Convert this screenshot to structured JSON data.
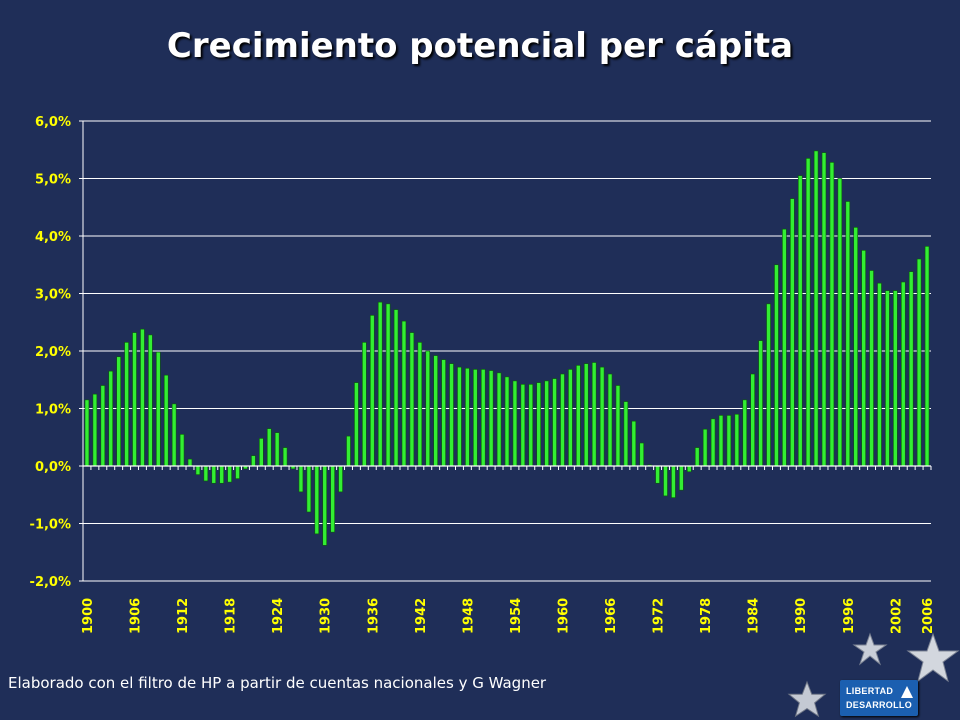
{
  "title": "Crecimiento potencial per cápita",
  "footnote": "Elaborado con el filtro de HP a partir de cuentas nacionales y G Wagner",
  "logo": {
    "line1": "LIBERTAD",
    "line2": "DESARROLLO"
  },
  "colors": {
    "background": "#1f2e58",
    "bar_fill": "#33ee33",
    "bar_stroke": "#0a5a0a",
    "tick_labels": "#ffff00",
    "gridlines": "#ffffff"
  },
  "chart_data": {
    "type": "bar",
    "title": "Crecimiento potencial per cápita",
    "xlabel": "",
    "ylabel": "",
    "ylim": [
      -2.0,
      6.0
    ],
    "ytick_labels": [
      "6,0%",
      "5,0%",
      "4,0%",
      "3,0%",
      "2,0%",
      "1,0%",
      "0,0%",
      "-1,0%",
      "-2,0%"
    ],
    "ytick_values": [
      6,
      5,
      4,
      3,
      2,
      1,
      0,
      -1,
      -2
    ],
    "xtick_labels": [
      "1900",
      "1906",
      "1912",
      "1918",
      "1924",
      "1930",
      "1936",
      "1942",
      "1948",
      "1954",
      "1960",
      "1966",
      "1972",
      "1978",
      "1984",
      "1990",
      "1996",
      "2002",
      "2006"
    ],
    "xtick_years": [
      1900,
      1906,
      1912,
      1918,
      1924,
      1930,
      1936,
      1942,
      1948,
      1954,
      1960,
      1966,
      1972,
      1978,
      1984,
      1990,
      1996,
      2002,
      2006
    ],
    "grid": true,
    "legend": "none",
    "unit": "%",
    "x_start": 1900,
    "x_end": 2006,
    "values": [
      1.15,
      1.25,
      1.4,
      1.65,
      1.9,
      2.15,
      2.32,
      2.38,
      2.28,
      1.98,
      1.58,
      1.08,
      0.55,
      0.12,
      -0.15,
      -0.26,
      -0.3,
      -0.3,
      -0.28,
      -0.22,
      -0.05,
      0.18,
      0.48,
      0.65,
      0.58,
      0.32,
      -0.05,
      -0.45,
      -0.8,
      -1.18,
      -1.38,
      -1.15,
      -0.45,
      0.52,
      1.45,
      2.15,
      2.62,
      2.85,
      2.82,
      2.72,
      2.52,
      2.32,
      2.15,
      2.0,
      1.92,
      1.85,
      1.78,
      1.72,
      1.7,
      1.68,
      1.68,
      1.66,
      1.62,
      1.55,
      1.48,
      1.42,
      1.42,
      1.45,
      1.48,
      1.52,
      1.6,
      1.68,
      1.75,
      1.78,
      1.8,
      1.72,
      1.6,
      1.4,
      1.12,
      0.78,
      0.4,
      0.02,
      -0.3,
      -0.52,
      -0.55,
      -0.42,
      -0.1,
      0.32,
      0.64,
      0.82,
      0.88,
      0.88,
      0.9,
      1.15,
      1.6,
      2.18,
      2.82,
      3.5,
      4.12,
      4.65,
      5.05,
      5.35,
      5.48,
      5.45,
      5.28,
      5.0,
      4.6,
      4.15,
      3.75,
      3.4,
      3.18,
      3.05,
      3.05,
      3.2,
      3.38,
      3.6,
      3.82
    ]
  }
}
